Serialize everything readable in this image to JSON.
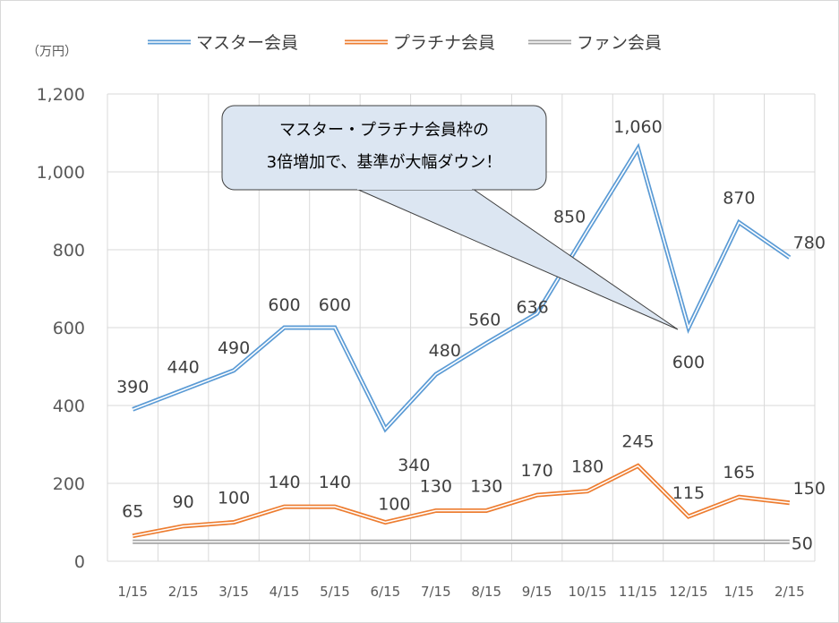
{
  "chart_data": {
    "type": "line",
    "unit_label": "（万円）",
    "categories": [
      "1/15",
      "2/15",
      "3/15",
      "4/15",
      "5/15",
      "6/15",
      "7/15",
      "8/15",
      "9/15",
      "10/15",
      "11/15",
      "12/15",
      "1/15",
      "2/15"
    ],
    "ylim": [
      0,
      1200
    ],
    "yticks": [
      0,
      200,
      400,
      600,
      800,
      1000,
      1200
    ],
    "ytick_labels": [
      "0",
      "200",
      "400",
      "600",
      "800",
      "1,000",
      "1,200"
    ],
    "grid": true,
    "legend_position": "top",
    "series": [
      {
        "name": "マスター会員",
        "color": "#5b9bd5",
        "values": [
          390,
          440,
          490,
          600,
          600,
          340,
          480,
          560,
          636,
          850,
          1060,
          600,
          870,
          780
        ],
        "labels": [
          "390",
          "440",
          "490",
          "600",
          "600",
          "340",
          "480",
          "560",
          "636",
          "850",
          "1,060",
          "600",
          "870",
          "780"
        ]
      },
      {
        "name": "プラチナ会員",
        "color": "#ed7d31",
        "values": [
          65,
          90,
          100,
          140,
          140,
          100,
          130,
          130,
          170,
          180,
          245,
          115,
          165,
          150
        ],
        "labels": [
          "65",
          "90",
          "100",
          "140",
          "140",
          "100",
          "130",
          "130",
          "170",
          "180",
          "245",
          "115",
          "165",
          "150"
        ]
      },
      {
        "name": "ファン会員",
        "color": "#a5a5a5",
        "values": [
          50,
          50,
          50,
          50,
          50,
          50,
          50,
          50,
          50,
          50,
          50,
          50,
          50,
          50
        ],
        "labels": [
          "",
          "",
          "",
          "",
          "",
          "",
          "",
          "",
          "",
          "",
          "",
          "",
          "",
          "50"
        ]
      }
    ],
    "annotation": {
      "lines": [
        "マスター・プラチナ会員枠の",
        "3倍増加で、基準が大幅ダウン！"
      ],
      "target_category_index": 11,
      "target_value": 600
    }
  }
}
